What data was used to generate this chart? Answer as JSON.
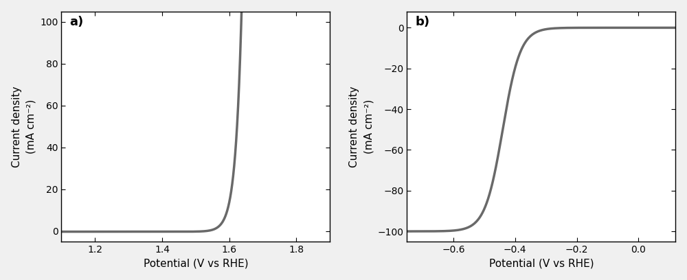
{
  "panel_a": {
    "label": "a)",
    "xlabel": "Potential (V vs RHE)",
    "ylabel": "Current density\n(mA cm⁻²)",
    "xlim": [
      1.1,
      1.9
    ],
    "ylim": [
      -5,
      105
    ],
    "xticks": [
      1.2,
      1.4,
      1.6,
      1.8
    ],
    "yticks": [
      0,
      20,
      40,
      60,
      80,
      100
    ],
    "curve_color": "#696969",
    "line_width": 2.5,
    "exp_onset": 1.53,
    "exp_k": 55.0,
    "exp_A": 0.3
  },
  "panel_b": {
    "label": "b)",
    "xlabel": "Potential (V vs RHE)",
    "ylabel": "Current density\n(mA cm⁻²)",
    "xlim": [
      -0.75,
      0.12
    ],
    "ylim": [
      -105,
      8
    ],
    "xticks": [
      -0.6,
      -0.4,
      -0.2,
      0.0
    ],
    "yticks": [
      -100,
      -80,
      -60,
      -40,
      -20,
      0
    ],
    "curve_color": "#696969",
    "line_width": 2.5,
    "sig_x_mid": -0.44,
    "sig_k": 35.0
  },
  "background_color": "#f0f0f0",
  "plot_bg": "#ffffff",
  "font_size_label": 11,
  "font_size_tick": 10,
  "font_size_panel_label": 13
}
